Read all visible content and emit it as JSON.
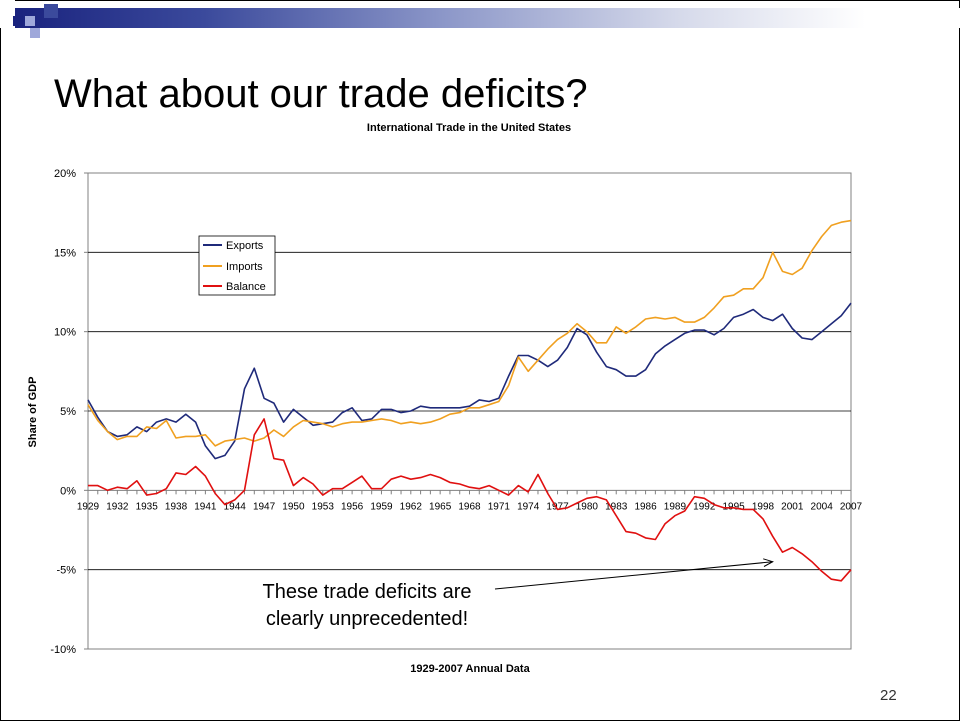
{
  "slide": {
    "title": "What about our trade deficits?",
    "number": "22",
    "accent_color": "#1a237e"
  },
  "chart_data": {
    "type": "line",
    "title": "International Trade in the United States",
    "xlabel": "1929-2007 Annual Data",
    "ylabel": "Share of GDP",
    "ylim": [
      -10,
      20
    ],
    "yticks": [
      -10,
      -5,
      0,
      5,
      10,
      15,
      20
    ],
    "ytick_labels": [
      "-10%",
      "-5%",
      "0%",
      "5%",
      "10%",
      "15%",
      "20%"
    ],
    "xtick_labels": [
      "1929",
      "1932",
      "1935",
      "1938",
      "1941",
      "1944",
      "1947",
      "1950",
      "1953",
      "1956",
      "1959",
      "1962",
      "1965",
      "1968",
      "1971",
      "1974",
      "1977",
      "1980",
      "1983",
      "1986",
      "1989",
      "1992",
      "1995",
      "1998",
      "2001",
      "2004",
      "2007"
    ],
    "grid": "horizontal",
    "legend_position": "upper-left",
    "x": [
      1929,
      1930,
      1931,
      1932,
      1933,
      1934,
      1935,
      1936,
      1937,
      1938,
      1939,
      1940,
      1941,
      1942,
      1943,
      1944,
      1945,
      1946,
      1947,
      1948,
      1949,
      1950,
      1951,
      1952,
      1953,
      1954,
      1955,
      1956,
      1957,
      1958,
      1959,
      1960,
      1961,
      1962,
      1963,
      1964,
      1965,
      1966,
      1967,
      1968,
      1969,
      1970,
      1971,
      1972,
      1973,
      1974,
      1975,
      1976,
      1977,
      1978,
      1979,
      1980,
      1981,
      1982,
      1983,
      1984,
      1985,
      1986,
      1987,
      1988,
      1989,
      1990,
      1991,
      1992,
      1993,
      1994,
      1995,
      1996,
      1997,
      1998,
      1999,
      2000,
      2001,
      2002,
      2003,
      2004,
      2005,
      2006,
      2007
    ],
    "series": [
      {
        "name": "Exports",
        "color": "#1f2a7a",
        "values": [
          5.7,
          4.6,
          3.7,
          3.4,
          3.5,
          4.0,
          3.7,
          4.3,
          4.5,
          4.3,
          4.8,
          4.3,
          2.8,
          2.0,
          2.2,
          3.1,
          6.4,
          7.7,
          5.8,
          5.5,
          4.3,
          5.1,
          4.6,
          4.1,
          4.2,
          4.3,
          4.9,
          5.2,
          4.4,
          4.5,
          5.1,
          5.1,
          4.9,
          5.0,
          5.3,
          5.2,
          5.2,
          5.2,
          5.2,
          5.3,
          5.7,
          5.6,
          5.8,
          7.2,
          8.5,
          8.5,
          8.2,
          7.8,
          8.2,
          9.0,
          10.2,
          9.8,
          8.7,
          7.8,
          7.6,
          7.2,
          7.2,
          7.6,
          8.6,
          9.1,
          9.5,
          9.9,
          10.1,
          10.1,
          9.8,
          10.2,
          10.9,
          11.1,
          11.4,
          10.9,
          10.7,
          11.1,
          10.2,
          9.6,
          9.5,
          10.0,
          10.5,
          11.0,
          11.8
        ]
      },
      {
        "name": "Imports",
        "color": "#f0a020",
        "values": [
          5.4,
          4.4,
          3.7,
          3.2,
          3.4,
          3.4,
          4.0,
          3.9,
          4.4,
          3.3,
          3.4,
          3.4,
          3.5,
          2.8,
          3.1,
          3.2,
          3.3,
          3.1,
          3.3,
          3.8,
          3.4,
          4.0,
          4.4,
          4.3,
          4.2,
          4.0,
          4.2,
          4.3,
          4.3,
          4.4,
          4.5,
          4.4,
          4.2,
          4.3,
          4.2,
          4.3,
          4.5,
          4.8,
          4.9,
          5.2,
          5.2,
          5.4,
          5.6,
          6.6,
          8.4,
          7.5,
          8.2,
          8.9,
          9.5,
          9.9,
          10.5,
          10.0,
          9.3,
          9.3,
          10.3,
          9.9,
          10.3,
          10.8,
          10.9,
          10.8,
          10.9,
          10.6,
          10.6,
          10.9,
          11.5,
          12.2,
          12.3,
          12.7,
          12.7,
          13.4,
          15.0,
          13.8,
          13.6,
          14.0,
          15.1,
          16.0,
          16.7,
          16.9,
          17.0
        ]
      },
      {
        "name": "Balance",
        "color": "#e01010",
        "values": [
          0.3,
          0.3,
          0.0,
          0.2,
          0.1,
          0.6,
          -0.3,
          -0.2,
          0.1,
          1.1,
          1.0,
          1.5,
          0.9,
          -0.2,
          -0.9,
          -0.6,
          0.0,
          3.5,
          4.5,
          2.0,
          1.9,
          0.3,
          0.8,
          0.4,
          -0.3,
          0.1,
          0.1,
          0.5,
          0.9,
          0.1,
          0.1,
          0.7,
          0.9,
          0.7,
          0.8,
          1.0,
          0.8,
          0.5,
          0.4,
          0.2,
          0.1,
          0.3,
          0.0,
          -0.3,
          0.3,
          -0.1,
          1.0,
          -0.2,
          -1.2,
          -1.1,
          -0.8,
          -0.5,
          -0.4,
          -0.6,
          -1.6,
          -2.6,
          -2.7,
          -3.0,
          -3.1,
          -2.1,
          -1.6,
          -1.3,
          -0.4,
          -0.5,
          -0.9,
          -1.1,
          -1.1,
          -1.2,
          -1.2,
          -1.8,
          -2.9,
          -3.9,
          -3.6,
          -4.0,
          -4.5,
          -5.1,
          -5.6,
          -5.7,
          -5.0
        ]
      }
    ],
    "annotation": {
      "text_lines": [
        "These trade deficits are",
        "clearly unprecedented!"
      ],
      "arrow_target": {
        "x": 1999,
        "y": -4.5
      }
    }
  }
}
